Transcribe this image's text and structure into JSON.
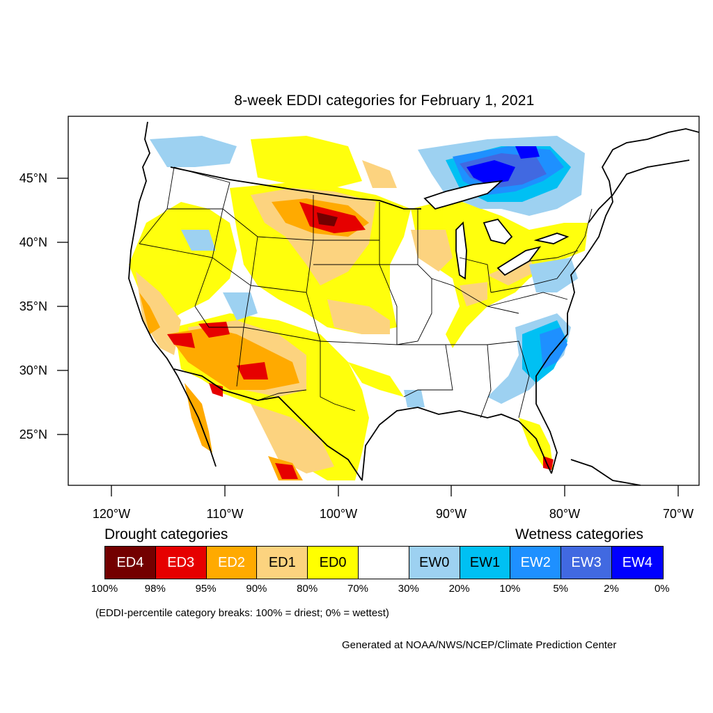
{
  "title": "8-week EDDI categories for February 1, 2021",
  "map": {
    "lat_labels": [
      "45°N",
      "40°N",
      "35°N",
      "30°N",
      "25°N"
    ],
    "lon_labels": [
      "120°W",
      "110°W",
      "100°W",
      "90°W",
      "80°W",
      "70°W"
    ]
  },
  "legend": {
    "drought_heading": "Drought categories",
    "wetness_heading": "Wetness categories",
    "categories": [
      {
        "label": "ED4",
        "color": "#730000",
        "text_color": "#ffffff"
      },
      {
        "label": "ED3",
        "color": "#e60000",
        "text_color": "#ffffff"
      },
      {
        "label": "ED2",
        "color": "#ffaa00",
        "text_color": "#ffffff"
      },
      {
        "label": "ED1",
        "color": "#fcd37f",
        "text_color": "#000000"
      },
      {
        "label": "ED0",
        "color": "#ffff00",
        "text_color": "#000000"
      },
      {
        "label": "",
        "color": "#ffffff",
        "text_color": "#000000"
      },
      {
        "label": "EW0",
        "color": "#9dd1f1",
        "text_color": "#000000"
      },
      {
        "label": "EW1",
        "color": "#00c0f3",
        "text_color": "#000000"
      },
      {
        "label": "EW2",
        "color": "#1e90ff",
        "text_color": "#ffffff"
      },
      {
        "label": "EW3",
        "color": "#4169e1",
        "text_color": "#ffffff"
      },
      {
        "label": "EW4",
        "color": "#0000ff",
        "text_color": "#ffffff"
      }
    ],
    "percentiles": [
      "100%",
      "98%",
      "95%",
      "90%",
      "80%",
      "70%",
      "30%",
      "20%",
      "10%",
      "5%",
      "2%",
      "0%"
    ]
  },
  "note": "(EDDI-percentile category breaks: 100% = driest; 0% = wettest)",
  "credit": "Generated at NOAA/NWS/NCEP/Climate Prediction Center"
}
